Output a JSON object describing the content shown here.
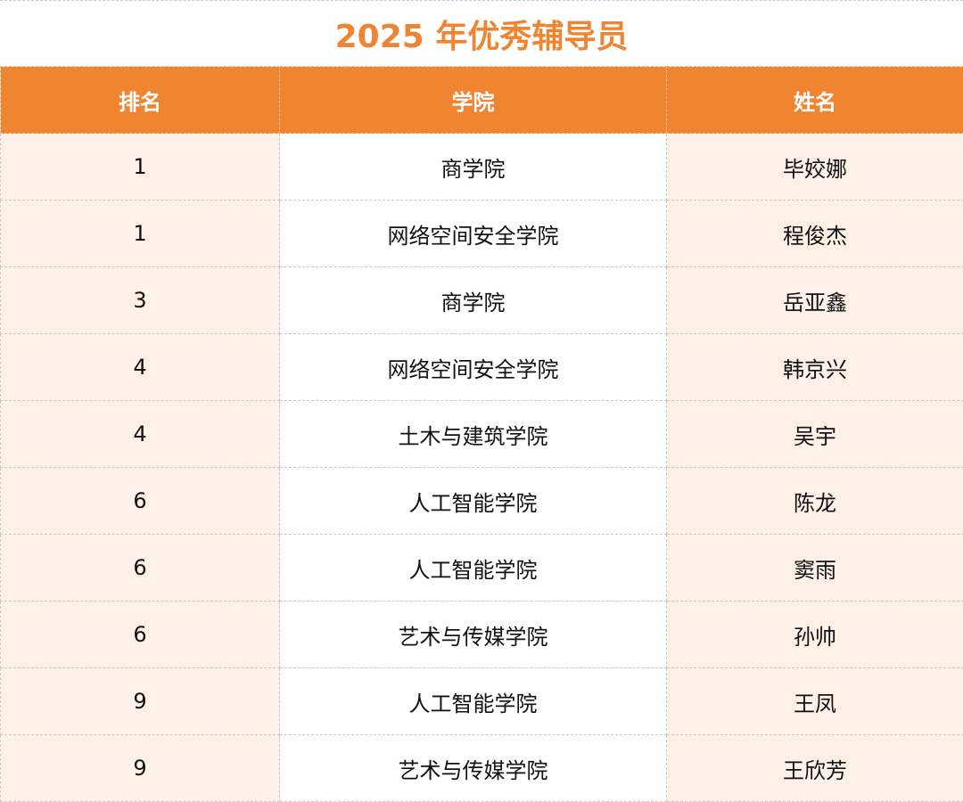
{
  "title": "2025 年优秀辅导员",
  "colors": {
    "accent": "#EF8431",
    "row_tint": "#FCF0E8"
  },
  "columns": [
    "排名",
    "学院",
    "姓名"
  ],
  "rows": [
    {
      "rank": "1",
      "college": "商学院",
      "name": "毕姣娜"
    },
    {
      "rank": "1",
      "college": "网络空间安全学院",
      "name": "程俊杰"
    },
    {
      "rank": "3",
      "college": "商学院",
      "name": "岳亚鑫"
    },
    {
      "rank": "4",
      "college": "网络空间安全学院",
      "name": "韩京兴"
    },
    {
      "rank": "4",
      "college": "土木与建筑学院",
      "name": "吴宇"
    },
    {
      "rank": "6",
      "college": "人工智能学院",
      "name": "陈龙"
    },
    {
      "rank": "6",
      "college": "人工智能学院",
      "name": "窦雨"
    },
    {
      "rank": "6",
      "college": "艺术与传媒学院",
      "name": "孙帅"
    },
    {
      "rank": "9",
      "college": "人工智能学院",
      "name": "王凤"
    },
    {
      "rank": "9",
      "college": "艺术与传媒学院",
      "name": "王欣芳"
    }
  ]
}
